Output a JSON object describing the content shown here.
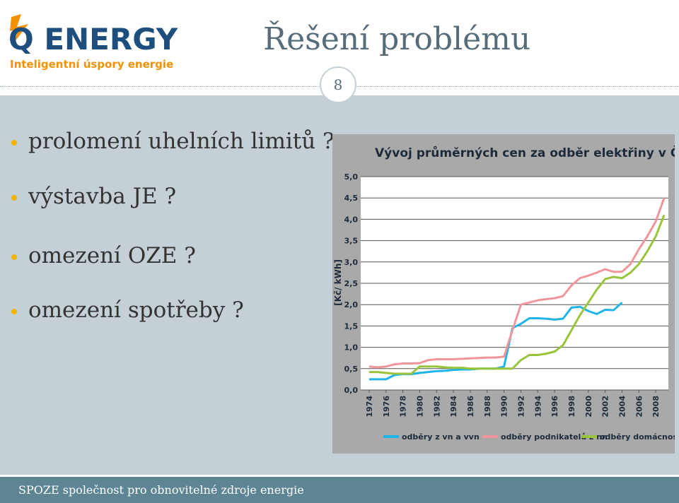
{
  "logo": {
    "name": "Q ENERGY",
    "tagline": "Inteligentní úspory energie"
  },
  "title": "Řešení problému",
  "slide_number": "8",
  "bullets": [
    "prolomení uhelních limitů ?",
    "výstavba JE ?",
    "omezení OZE ?",
    "omezení spotřeby ?"
  ],
  "chart_data": {
    "type": "line",
    "title": "Vývoj průměrných cen za odběr elektřiny v ČR",
    "y_label": "[Kč/ kWh]",
    "x": [
      1974,
      1975,
      1976,
      1977,
      1978,
      1979,
      1980,
      1981,
      1982,
      1983,
      1984,
      1985,
      1986,
      1987,
      1988,
      1989,
      1990,
      1991,
      1992,
      1993,
      1994,
      1995,
      1996,
      1997,
      1998,
      1999,
      2000,
      2001,
      2002,
      2003,
      2004,
      2005,
      2006,
      2007,
      2008,
      2009
    ],
    "series": [
      {
        "name": "odběry z vn a vvn",
        "color": "#1fb4e8",
        "values": [
          0.25,
          0.25,
          0.25,
          0.35,
          0.37,
          0.37,
          0.4,
          0.42,
          0.44,
          0.45,
          0.47,
          0.48,
          0.48,
          0.5,
          0.5,
          0.5,
          0.55,
          1.45,
          1.55,
          1.68,
          1.68,
          1.67,
          1.65,
          1.67,
          1.93,
          1.95,
          1.85,
          1.78,
          1.88,
          1.87,
          2.05,
          null,
          null,
          null,
          null,
          null
        ]
      },
      {
        "name": "odběry podnikatelů z nn",
        "color": "#f0959a",
        "values": [
          0.55,
          0.53,
          0.55,
          0.6,
          0.62,
          0.62,
          0.63,
          0.7,
          0.72,
          0.72,
          0.72,
          0.73,
          0.74,
          0.75,
          0.76,
          0.76,
          0.78,
          1.4,
          2.0,
          2.05,
          2.1,
          2.13,
          2.15,
          2.2,
          2.45,
          2.62,
          2.68,
          2.75,
          2.83,
          2.77,
          2.77,
          2.95,
          3.3,
          3.6,
          3.95,
          4.5
        ]
      },
      {
        "name": "odběry domácností",
        "color": "#99c43a",
        "values": [
          0.42,
          0.42,
          0.4,
          0.38,
          0.38,
          0.38,
          0.55,
          0.55,
          0.55,
          0.53,
          0.52,
          0.52,
          0.5,
          0.5,
          0.5,
          0.5,
          0.5,
          0.5,
          0.7,
          0.82,
          0.82,
          0.85,
          0.9,
          1.05,
          1.4,
          1.75,
          2.05,
          2.35,
          2.6,
          2.65,
          2.62,
          2.75,
          2.95,
          3.25,
          3.6,
          4.1
        ]
      }
    ],
    "xlim": [
      1973,
      2009.5
    ],
    "xticks": [
      1974,
      1976,
      1978,
      1980,
      1982,
      1984,
      1986,
      1988,
      1990,
      1992,
      1994,
      1996,
      1998,
      2000,
      2002,
      2004,
      2006,
      2008
    ],
    "ylim": [
      0,
      5
    ],
    "yticks": [
      {
        "value": 0,
        "label": "0,0"
      },
      {
        "value": 0.5,
        "label": "0,5"
      },
      {
        "value": 1,
        "label": "1,0"
      },
      {
        "value": 1.5,
        "label": "1,5"
      },
      {
        "value": 2,
        "label": "2,0"
      },
      {
        "value": 2.5,
        "label": "2,5"
      },
      {
        "value": 3,
        "label": "3,0"
      },
      {
        "value": 3.5,
        "label": "3,5"
      },
      {
        "value": 4,
        "label": "4,0"
      },
      {
        "value": 4.5,
        "label": "4,5"
      },
      {
        "value": 5,
        "label": "5,0"
      }
    ],
    "grid": true
  },
  "footer": "SPOZE společnost pro obnovitelné zdroje energie"
}
